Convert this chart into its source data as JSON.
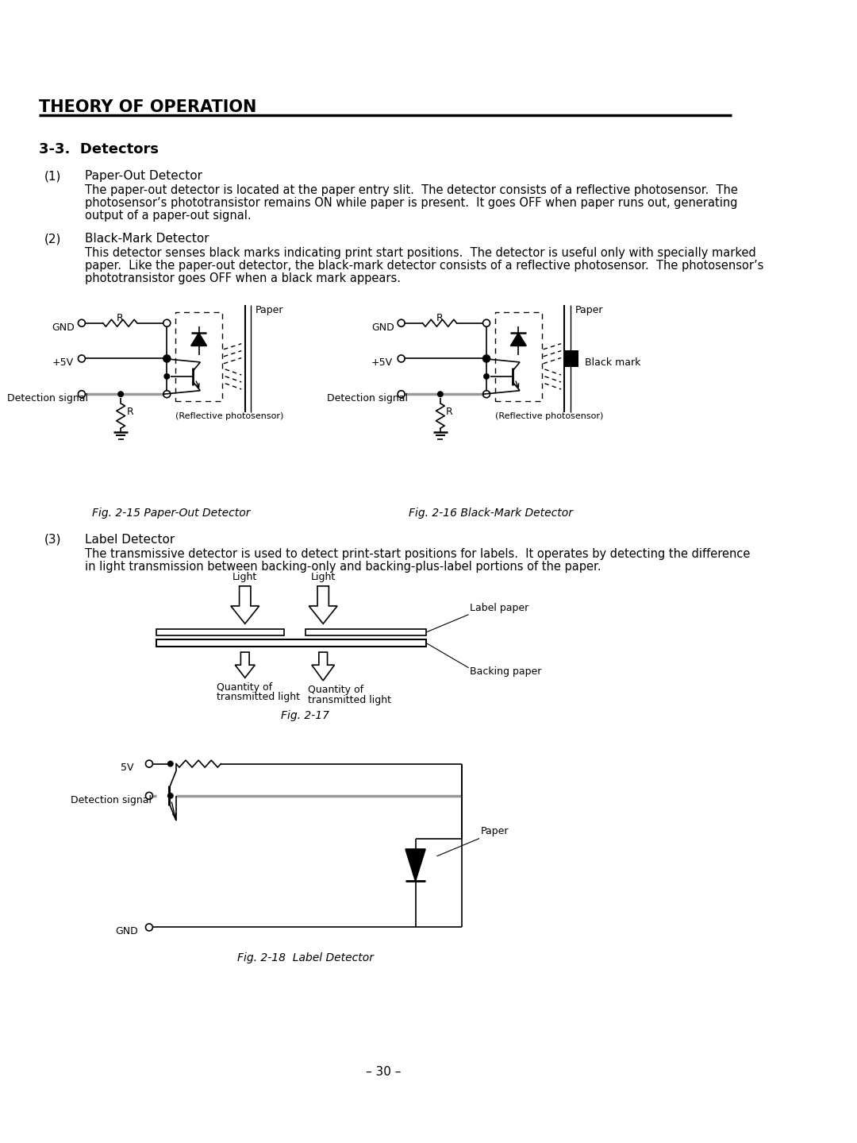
{
  "title": "THEORY OF OPERATION",
  "section": "3-3.  Detectors",
  "items": [
    {
      "num": "(1)",
      "heading": "Paper-Out Detector",
      "text1": "The paper-out detector is located at the paper entry slit.  The detector consists of a reflective photosensor.  The",
      "text2": "photosensor’s phototransistor remains ON while paper is present.  It goes OFF when paper runs out, generating",
      "text3": "output of a paper-out signal."
    },
    {
      "num": "(2)",
      "heading": "Black-Mark Detector",
      "text1": "This detector senses black marks indicating print start positions.  The detector is useful only with specially marked",
      "text2": "paper.  Like the paper-out detector, the black-mark detector consists of a reflective photosensor.  The photosensor’s",
      "text3": "phototransistor goes OFF when a black mark appears."
    },
    {
      "num": "(3)",
      "heading": "Label Detector",
      "text1": "The transmissive detector is used to detect print-start positions for labels.  It operates by detecting the difference",
      "text2": "in light transmission between backing-only and backing-plus-label portions of the paper."
    }
  ],
  "fig15_caption": "Fig. 2-15 Paper-Out Detector",
  "fig16_caption": "Fig. 2-16 Black-Mark Detector",
  "fig17_caption": "Fig. 2-17",
  "fig18_caption": "Fig. 2-18  Label Detector",
  "page_num": "– 30 –",
  "bg_color": "#ffffff",
  "text_color": "#000000"
}
